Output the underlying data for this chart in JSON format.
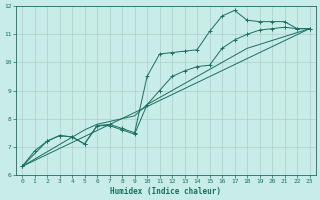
{
  "xlabel": "Humidex (Indice chaleur)",
  "xlim": [
    -0.5,
    23.5
  ],
  "ylim": [
    6,
    12
  ],
  "xticks": [
    0,
    1,
    2,
    3,
    4,
    5,
    6,
    7,
    8,
    9,
    10,
    11,
    12,
    13,
    14,
    15,
    16,
    17,
    18,
    19,
    20,
    21,
    22,
    23
  ],
  "yticks": [
    6,
    7,
    8,
    9,
    10,
    11,
    12
  ],
  "bg_color": "#c8ede8",
  "line_color": "#1a6e62",
  "grid_color": "#b0ccc8",
  "line1_x": [
    0,
    1,
    2,
    3,
    4,
    5,
    6,
    7,
    8,
    9,
    10,
    11,
    12,
    13,
    14,
    15,
    16,
    17,
    18,
    19,
    20,
    21,
    22,
    23
  ],
  "line1_y": [
    6.3,
    6.85,
    7.2,
    7.4,
    7.35,
    7.1,
    7.75,
    7.75,
    7.6,
    7.45,
    8.5,
    9.0,
    9.5,
    9.7,
    9.85,
    9.9,
    10.5,
    10.8,
    11.0,
    11.15,
    11.2,
    11.25,
    11.2,
    11.2
  ],
  "line1_has_markers": true,
  "line2_x": [
    0,
    2,
    3,
    4,
    5,
    6,
    7,
    8,
    9,
    10,
    11,
    12,
    13,
    14,
    15,
    16,
    17,
    18,
    19,
    20,
    21,
    22,
    23
  ],
  "line2_y": [
    6.3,
    7.2,
    7.4,
    7.35,
    7.1,
    7.75,
    7.8,
    7.65,
    7.5,
    9.5,
    10.3,
    10.35,
    10.4,
    10.45,
    11.1,
    11.65,
    11.85,
    11.5,
    11.45,
    11.45,
    11.45,
    11.2,
    11.2
  ],
  "line2_has_markers": true,
  "line3_x": [
    0,
    23
  ],
  "line3_y": [
    6.3,
    11.2
  ],
  "line3_has_markers": false,
  "line4_x": [
    0,
    5,
    6,
    7,
    8,
    9,
    10,
    14,
    18,
    23
  ],
  "line4_y": [
    6.3,
    7.6,
    7.8,
    7.9,
    8.0,
    8.1,
    8.5,
    9.5,
    10.5,
    11.2
  ],
  "line4_has_markers": false
}
